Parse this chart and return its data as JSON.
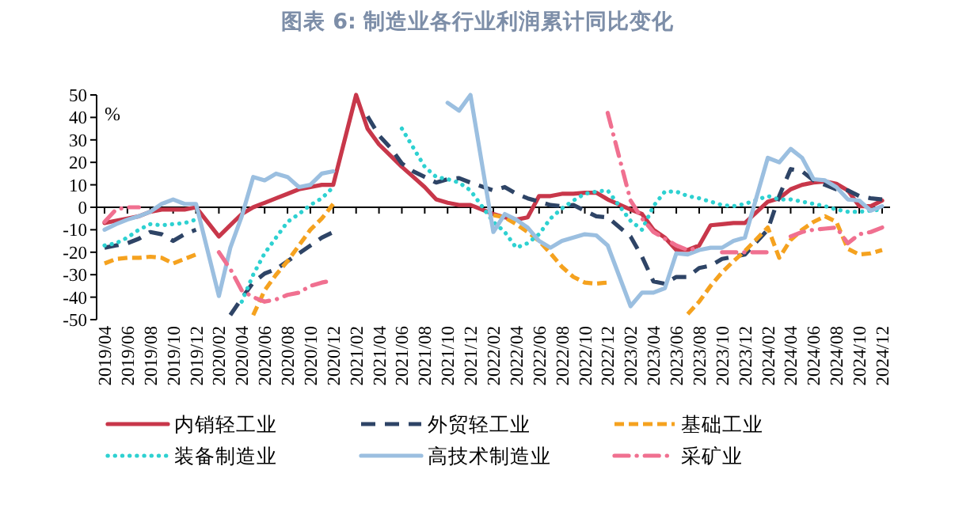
{
  "chart_data": {
    "type": "line",
    "title": "图表 6:  制造业各行业利润累计同比变化",
    "ylabel": "%",
    "x": [
      "2019-04",
      "2019-05",
      "2019-06",
      "2019-07",
      "2019-08",
      "2019-09",
      "2019-10",
      "2019-11",
      "2019-12",
      "2020-02",
      "2020-03",
      "2020-04",
      "2020-05",
      "2020-06",
      "2020-07",
      "2020-08",
      "2020-09",
      "2020-10",
      "2020-11",
      "2020-12",
      "2021-02",
      "2021-03",
      "2021-04",
      "2021-05",
      "2021-06",
      "2021-07",
      "2021-08",
      "2021-09",
      "2021-10",
      "2021-11",
      "2021-12",
      "2022-02",
      "2022-03",
      "2022-04",
      "2022-05",
      "2022-06",
      "2022-07",
      "2022-08",
      "2022-09",
      "2022-10",
      "2022-11",
      "2022-12",
      "2023-02",
      "2023-03",
      "2023-04",
      "2023-05",
      "2023-06",
      "2023-07",
      "2023-08",
      "2023-09",
      "2023-10",
      "2023-11",
      "2023-12",
      "2024-02",
      "2024-03",
      "2024-04",
      "2024-05",
      "2024-06",
      "2024-07",
      "2024-08",
      "2024-09",
      "2024-10",
      "2024-11",
      "2024-12"
    ],
    "xlim": [
      "2019-04",
      "2024-12"
    ],
    "xticks": [
      {
        "value": "2019-04",
        "label": "2019/04"
      },
      {
        "value": "2019-06",
        "label": "2019/06"
      },
      {
        "value": "2019-08",
        "label": "2019/08"
      },
      {
        "value": "2019-10",
        "label": "2019/10"
      },
      {
        "value": "2019-12",
        "label": "2019/12"
      },
      {
        "value": "2020-02",
        "label": "2020/02"
      },
      {
        "value": "2020-04",
        "label": "2020/04"
      },
      {
        "value": "2020-06",
        "label": "2020/06"
      },
      {
        "value": "2020-08",
        "label": "2020/08"
      },
      {
        "value": "2020-10",
        "label": "2020/10"
      },
      {
        "value": "2020-12",
        "label": "2020/12"
      },
      {
        "value": "2021-02",
        "label": "2021/02"
      },
      {
        "value": "2021-04",
        "label": "2021/04"
      },
      {
        "value": "2021-06",
        "label": "2021/06"
      },
      {
        "value": "2021-08",
        "label": "2021/08"
      },
      {
        "value": "2021-10",
        "label": "2021/10"
      },
      {
        "value": "2021-12",
        "label": "2021/12"
      },
      {
        "value": "2022-02",
        "label": "2022/02"
      },
      {
        "value": "2022-04",
        "label": "2022/04"
      },
      {
        "value": "2022-06",
        "label": "2022/06"
      },
      {
        "value": "2022-08",
        "label": "2022/08"
      },
      {
        "value": "2022-10",
        "label": "2022/10"
      },
      {
        "value": "2022-12",
        "label": "2022/12"
      },
      {
        "value": "2023-02",
        "label": "2023/02"
      },
      {
        "value": "2023-04",
        "label": "2023/04"
      },
      {
        "value": "2023-06",
        "label": "2023/06"
      },
      {
        "value": "2023-08",
        "label": "2023/08"
      },
      {
        "value": "2023-10",
        "label": "2023/10"
      },
      {
        "value": "2023-12",
        "label": "2023/12"
      },
      {
        "value": "2024-02",
        "label": "2024/02"
      },
      {
        "value": "2024-04",
        "label": "2024/04"
      },
      {
        "value": "2024-06",
        "label": "2024/06"
      },
      {
        "value": "2024-08",
        "label": "2024/08"
      },
      {
        "value": "2024-10",
        "label": "2024/10"
      },
      {
        "value": "2024-12",
        "label": "2024/12"
      }
    ],
    "ylim": [
      -50,
      50
    ],
    "yticks": [
      -50,
      -40,
      -30,
      -20,
      -10,
      0,
      10,
      20,
      30,
      40,
      50
    ],
    "legend": "bottom",
    "series": [
      {
        "name": "内销轻工业",
        "color": "#c8374a",
        "line_style": "solid",
        "values": [
          -7,
          -6,
          -5,
          -4,
          -2,
          -1,
          -1,
          -1,
          0,
          -13,
          -8,
          -3,
          0,
          2,
          4,
          6,
          8,
          9,
          10,
          10,
          50,
          35,
          28,
          23,
          18,
          13.5,
          9,
          3.5,
          2,
          1,
          1,
          -3,
          -4.5,
          -5.5,
          -4.5,
          5,
          5,
          6,
          6,
          6.5,
          6.5,
          3.5,
          -1,
          -3,
          -10,
          -13.5,
          -19,
          -19,
          -17,
          -8,
          -7.5,
          -7,
          -7,
          2.5,
          4,
          8,
          10,
          11,
          11.5,
          10.5,
          7.5,
          0.5,
          0.5,
          3
        ]
      },
      {
        "name": "外贸轻工业",
        "color": "#2e4466",
        "line_style": "dashed",
        "values": [
          -18,
          -17,
          -16,
          -14,
          -11,
          -12,
          -15,
          -12,
          -10,
          null,
          -48,
          -40.5,
          -33.5,
          -29.5,
          -27.5,
          -24,
          -20.5,
          -17,
          -13.5,
          -11,
          null,
          40.5,
          32,
          26.5,
          19.5,
          16,
          13.5,
          11,
          12.5,
          13,
          11,
          7.5,
          9,
          6,
          4,
          2.5,
          1,
          0.5,
          1,
          -1.5,
          -4,
          -4.5,
          -13,
          -22,
          -33,
          -34,
          -31,
          -31,
          -27,
          -26,
          -23,
          -22,
          -21,
          -10,
          5,
          17,
          16,
          12,
          10,
          8,
          7.5,
          5,
          4,
          3.5
        ]
      },
      {
        "name": "基础工业",
        "color": "#f5a21f",
        "line_style": "dashed",
        "values": [
          -25,
          -23,
          -22.5,
          -22.5,
          -22,
          -22.5,
          -25,
          -23,
          -21,
          null,
          null,
          null,
          -48,
          -37,
          -30,
          -24,
          -17,
          -10,
          -5,
          1.5,
          null,
          null,
          null,
          null,
          null,
          null,
          null,
          null,
          null,
          null,
          null,
          -3.5,
          -4.5,
          -7.5,
          -11,
          -15,
          -20.5,
          -26.5,
          -31,
          -33.5,
          -34,
          -33.5,
          null,
          null,
          null,
          null,
          null,
          -47.5,
          -42,
          -35,
          -29,
          -24,
          -19.5,
          -9,
          -22.5,
          -14.5,
          -10,
          -6.5,
          -4,
          -6.5,
          -18.5,
          -21,
          -20.5,
          -19
        ]
      },
      {
        "name": "装备制造业",
        "color": "#2ed1d1",
        "line_style": "dotted",
        "values": [
          -17,
          -16,
          -13.5,
          -10,
          -7.5,
          -8,
          -7.5,
          -7,
          -5.5,
          null,
          null,
          -42,
          -30,
          -20.5,
          -13.5,
          -6.5,
          -3,
          1,
          4,
          9,
          null,
          null,
          null,
          null,
          35,
          26.5,
          18,
          13.5,
          12.5,
          11,
          7.5,
          -6.5,
          -11,
          -18,
          -16,
          -12,
          -5,
          -0.5,
          3,
          6,
          7,
          7.5,
          -6,
          -10,
          0.5,
          7,
          7,
          5,
          4,
          2.5,
          1,
          0.5,
          1.5,
          5,
          3.5,
          3.5,
          2.5,
          1.5,
          0.5,
          -1,
          -2,
          -2,
          -1.5,
          -1
        ]
      },
      {
        "name": "高技术制造业",
        "color": "#9bbfe0",
        "line_style": "solid",
        "values": [
          -10,
          -7.5,
          -5.5,
          -4,
          -2,
          1.5,
          3.5,
          1.5,
          1.5,
          -39.5,
          -18,
          -4,
          13.5,
          12,
          15,
          13.5,
          9,
          10,
          15,
          16,
          null,
          null,
          null,
          null,
          null,
          null,
          null,
          null,
          46.5,
          43,
          50,
          -11,
          -3,
          -5.5,
          -9,
          -15,
          -18,
          -15,
          -13.5,
          -12,
          -12.5,
          -17,
          -44,
          -38,
          -38,
          -36,
          -20.5,
          -21,
          -19,
          -18,
          -18,
          -15,
          -13.5,
          22,
          20,
          26,
          22,
          12.5,
          12,
          9,
          3.5,
          3,
          -1.5,
          0.5
        ]
      },
      {
        "name": "采矿业",
        "color": "#f07090",
        "line_style": "dashdot",
        "values": [
          -6.5,
          -1,
          0,
          0,
          null,
          null,
          null,
          null,
          null,
          -20,
          -27.5,
          -37,
          -40,
          -42,
          -41,
          -39,
          -38,
          -35,
          -33.5,
          -32.5,
          null,
          null,
          null,
          null,
          null,
          null,
          null,
          null,
          null,
          null,
          null,
          null,
          null,
          null,
          null,
          null,
          null,
          null,
          null,
          null,
          null,
          42,
          3,
          -5,
          -11,
          -14,
          -17,
          -19,
          -18,
          null,
          -20,
          -20,
          -20,
          -20,
          null,
          -13,
          -11,
          -10,
          -9.5,
          -9,
          -16,
          -12,
          -11,
          -9
        ]
      }
    ]
  }
}
